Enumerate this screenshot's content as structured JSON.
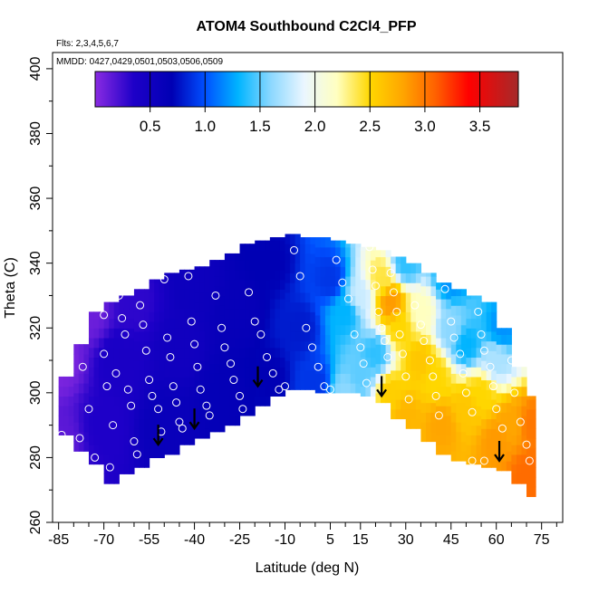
{
  "chart_data": {
    "type": "heatmap",
    "title": "ATOM4 Southbound C2Cl4_PFP",
    "subtitle_lines": [
      "Flts: 2,3,4,5,6,7",
      "MMDD: 0427,0429,0501,0503,0506,0509"
    ],
    "xlabel": "Latitude (deg N)",
    "ylabel": "Theta (C)",
    "xlim": [
      -87,
      82
    ],
    "ylim": [
      260,
      405
    ],
    "xticks": [
      -85,
      -70,
      -55,
      -40,
      -25,
      -10,
      5,
      15,
      30,
      45,
      60,
      75
    ],
    "xticks_minor": [
      -80,
      -75,
      -65,
      -60,
      -50,
      -45,
      -35,
      -30,
      -20,
      -15,
      -5,
      0,
      10,
      20,
      25,
      35,
      40,
      50,
      55,
      65,
      70,
      80
    ],
    "yticks": [
      260,
      280,
      300,
      320,
      340,
      360,
      380,
      400
    ],
    "colorbar": {
      "range": [
        0.0,
        3.85
      ],
      "ticks": [
        "0.5",
        "1.0",
        "1.5",
        "2.0",
        "2.5",
        "3.0",
        "3.5"
      ],
      "tick_values": [
        0.5,
        1.0,
        1.5,
        2.0,
        2.5,
        3.0,
        3.5
      ],
      "stops": [
        {
          "v": 0.0,
          "color": "#8a2be2"
        },
        {
          "v": 0.35,
          "color": "#1e00c8"
        },
        {
          "v": 0.7,
          "color": "#0000b4"
        },
        {
          "v": 1.0,
          "color": "#0050ff"
        },
        {
          "v": 1.3,
          "color": "#00b4ff"
        },
        {
          "v": 1.6,
          "color": "#8cd8ff"
        },
        {
          "v": 1.9,
          "color": "#eaf6ff"
        },
        {
          "v": 2.2,
          "color": "#ffffc0"
        },
        {
          "v": 2.5,
          "color": "#ffd700"
        },
        {
          "v": 2.8,
          "color": "#ffa500"
        },
        {
          "v": 3.1,
          "color": "#ff6000"
        },
        {
          "v": 3.4,
          "color": "#ff0000"
        },
        {
          "v": 3.85,
          "color": "#a52a2a"
        }
      ]
    },
    "surface": {
      "lat": [
        -85,
        -80,
        -75,
        -70,
        -65,
        -60,
        -55,
        -50,
        -45,
        -40,
        -35,
        -30,
        -25,
        -20,
        -15,
        -10,
        -5,
        0,
        5,
        10,
        15,
        20,
        25,
        30,
        35,
        40,
        45,
        50,
        55,
        60,
        65,
        70
      ],
      "theta_bottom": [
        287,
        282,
        278,
        272,
        275,
        277,
        280,
        281,
        284,
        286,
        288,
        290,
        293,
        296,
        299,
        301,
        301,
        300,
        300,
        300,
        299,
        297,
        292,
        289,
        285,
        281,
        279,
        278,
        277,
        276,
        272,
        268
      ],
      "theta_top": [
        305,
        315,
        325,
        328,
        330,
        332,
        335,
        337,
        338,
        339,
        341,
        343,
        346,
        347,
        348,
        349,
        348,
        348,
        347,
        346,
        345,
        344,
        342,
        340,
        337,
        334,
        332,
        330,
        328,
        320,
        308,
        299
      ],
      "control_points": [
        {
          "lat": -85,
          "theta": 285,
          "v": 0.15
        },
        {
          "lat": -85,
          "theta": 310,
          "v": 0.05
        },
        {
          "lat": -75,
          "theta": 325,
          "v": 0.1
        },
        {
          "lat": -70,
          "theta": 290,
          "v": 0.35
        },
        {
          "lat": -65,
          "theta": 310,
          "v": 0.4
        },
        {
          "lat": -60,
          "theta": 328,
          "v": 0.3
        },
        {
          "lat": -50,
          "theta": 290,
          "v": 0.6
        },
        {
          "lat": -45,
          "theta": 315,
          "v": 0.5
        },
        {
          "lat": -40,
          "theta": 335,
          "v": 0.55
        },
        {
          "lat": -30,
          "theta": 300,
          "v": 0.65
        },
        {
          "lat": -25,
          "theta": 325,
          "v": 0.62
        },
        {
          "lat": -15,
          "theta": 305,
          "v": 0.7
        },
        {
          "lat": -15,
          "theta": 340,
          "v": 0.7
        },
        {
          "lat": -5,
          "theta": 320,
          "v": 0.8
        },
        {
          "lat": 0,
          "theta": 303,
          "v": 0.9
        },
        {
          "lat": 5,
          "theta": 335,
          "v": 0.9
        },
        {
          "lat": 10,
          "theta": 300,
          "v": 1.6
        },
        {
          "lat": 10,
          "theta": 325,
          "v": 1.3
        },
        {
          "lat": 15,
          "theta": 305,
          "v": 1.5
        },
        {
          "lat": 15,
          "theta": 330,
          "v": 1.8
        },
        {
          "lat": 20,
          "theta": 312,
          "v": 1.4
        },
        {
          "lat": 25,
          "theta": 300,
          "v": 2.55
        },
        {
          "lat": 22,
          "theta": 335,
          "v": 2.4
        },
        {
          "lat": 25,
          "theta": 328,
          "v": 2.85
        },
        {
          "lat": 28,
          "theta": 320,
          "v": 2.5
        },
        {
          "lat": 30,
          "theta": 293,
          "v": 2.7
        },
        {
          "lat": 35,
          "theta": 310,
          "v": 2.6
        },
        {
          "lat": 35,
          "theta": 325,
          "v": 2.2
        },
        {
          "lat": 40,
          "theta": 305,
          "v": 2.5
        },
        {
          "lat": 42,
          "theta": 290,
          "v": 2.8
        },
        {
          "lat": 45,
          "theta": 320,
          "v": 1.6
        },
        {
          "lat": 50,
          "theta": 295,
          "v": 2.6
        },
        {
          "lat": 50,
          "theta": 315,
          "v": 1.3
        },
        {
          "lat": 55,
          "theta": 300,
          "v": 2.5
        },
        {
          "lat": 60,
          "theta": 285,
          "v": 2.85
        },
        {
          "lat": 60,
          "theta": 310,
          "v": 1.7
        },
        {
          "lat": 65,
          "theta": 290,
          "v": 2.8
        },
        {
          "lat": 70,
          "theta": 275,
          "v": 3.05
        },
        {
          "lat": 72,
          "theta": 290,
          "v": 3.0
        },
        {
          "lat": 62,
          "theta": 320,
          "v": 1.2
        },
        {
          "lat": 45,
          "theta": 335,
          "v": 1.2
        },
        {
          "lat": 30,
          "theta": 340,
          "v": 1.4
        }
      ]
    },
    "sample_points": [
      [
        -84,
        287
      ],
      [
        -82,
        321
      ],
      [
        -78,
        286
      ],
      [
        -77,
        308
      ],
      [
        -75,
        295
      ],
      [
        -73,
        280
      ],
      [
        -72,
        274
      ],
      [
        -70,
        332
      ],
      [
        -70,
        324
      ],
      [
        -70,
        312
      ],
      [
        -69,
        302
      ],
      [
        -68,
        277
      ],
      [
        -67,
        290
      ],
      [
        -66,
        306
      ],
      [
        -65,
        330
      ],
      [
        -64,
        323
      ],
      [
        -63,
        318
      ],
      [
        -62,
        301
      ],
      [
        -61,
        296
      ],
      [
        -60,
        285
      ],
      [
        -59,
        281
      ],
      [
        -58,
        327
      ],
      [
        -57,
        321
      ],
      [
        -56,
        313
      ],
      [
        -55,
        304
      ],
      [
        -54,
        299
      ],
      [
        -52,
        295
      ],
      [
        -51,
        288
      ],
      [
        -50,
        335
      ],
      [
        -49,
        317
      ],
      [
        -48,
        311
      ],
      [
        -47,
        302
      ],
      [
        -46,
        297
      ],
      [
        -45,
        291
      ],
      [
        -44,
        289
      ],
      [
        -42,
        336
      ],
      [
        -41,
        322
      ],
      [
        -40,
        315
      ],
      [
        -39,
        308
      ],
      [
        -38,
        301
      ],
      [
        -36,
        296
      ],
      [
        -35,
        293
      ],
      [
        -33,
        330
      ],
      [
        -31,
        320
      ],
      [
        -30,
        314
      ],
      [
        -28,
        309
      ],
      [
        -27,
        304
      ],
      [
        -25,
        299
      ],
      [
        -24,
        295
      ],
      [
        -22,
        331
      ],
      [
        -20,
        322
      ],
      [
        -18,
        318
      ],
      [
        -16,
        311
      ],
      [
        -14,
        306
      ],
      [
        -12,
        301
      ],
      [
        -10,
        302
      ],
      [
        -7,
        344
      ],
      [
        -5,
        336
      ],
      [
        -3,
        320
      ],
      [
        -1,
        314
      ],
      [
        1,
        308
      ],
      [
        3,
        302
      ],
      [
        5,
        301
      ],
      [
        7,
        341
      ],
      [
        9,
        334
      ],
      [
        11,
        329
      ],
      [
        13,
        318
      ],
      [
        15,
        314
      ],
      [
        16,
        309
      ],
      [
        17,
        303
      ],
      [
        18,
        345
      ],
      [
        19,
        338
      ],
      [
        20,
        333
      ],
      [
        21,
        325
      ],
      [
        22,
        320
      ],
      [
        23,
        316
      ],
      [
        24,
        311
      ],
      [
        25,
        337
      ],
      [
        26,
        331
      ],
      [
        27,
        325
      ],
      [
        28,
        318
      ],
      [
        29,
        312
      ],
      [
        30,
        305
      ],
      [
        31,
        298
      ],
      [
        33,
        327
      ],
      [
        35,
        321
      ],
      [
        36,
        316
      ],
      [
        38,
        310
      ],
      [
        39,
        305
      ],
      [
        40,
        299
      ],
      [
        41,
        293
      ],
      [
        43,
        332
      ],
      [
        45,
        322
      ],
      [
        46,
        317
      ],
      [
        48,
        312
      ],
      [
        49,
        306
      ],
      [
        50,
        300
      ],
      [
        52,
        294
      ],
      [
        54,
        325
      ],
      [
        55,
        318
      ],
      [
        56,
        313
      ],
      [
        58,
        308
      ],
      [
        59,
        302
      ],
      [
        60,
        295
      ],
      [
        62,
        289
      ],
      [
        64,
        322
      ],
      [
        65,
        310
      ],
      [
        66,
        300
      ],
      [
        68,
        291
      ],
      [
        70,
        284
      ],
      [
        71,
        279
      ],
      [
        56,
        279
      ],
      [
        52,
        279
      ]
    ],
    "arrows": [
      {
        "lat": -52,
        "theta": 284
      },
      {
        "lat": -40,
        "theta": 289
      },
      {
        "lat": -19,
        "theta": 302
      },
      {
        "lat": 22,
        "theta": 299
      },
      {
        "lat": 61,
        "theta": 279
      }
    ]
  }
}
